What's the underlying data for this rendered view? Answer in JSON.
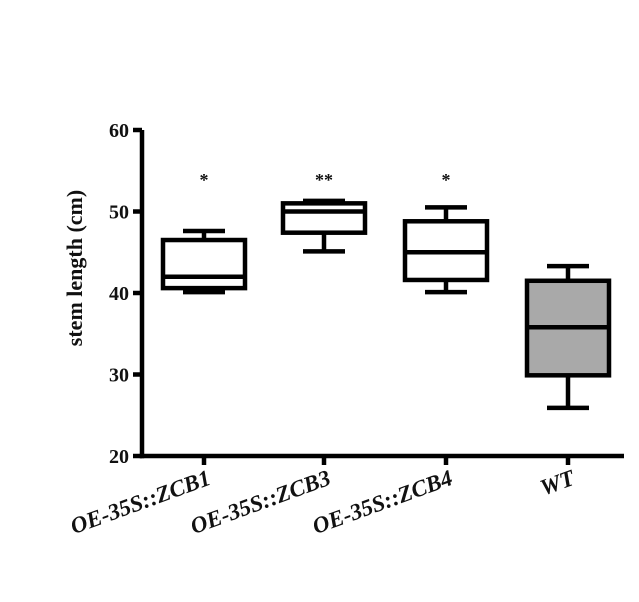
{
  "chart_data": {
    "type": "box",
    "title": "",
    "xlabel": "",
    "ylabel": "stem length (cm)",
    "ylim": [
      20,
      60
    ],
    "yticks": [
      20,
      30,
      40,
      50,
      60
    ],
    "grid": false,
    "legend": "none",
    "categories": [
      {
        "prefix": "OE-35S::",
        "italic": "ZCB1"
      },
      {
        "prefix": "OE-35S::",
        "italic": "ZCB3"
      },
      {
        "prefix": "OE-35S::",
        "italic": "ZCB4"
      },
      {
        "prefix": "",
        "italic": "WT"
      }
    ],
    "boxes": [
      {
        "min": 40.1,
        "q1": 40.6,
        "median": 42.0,
        "q3": 46.5,
        "max": 47.6,
        "fill": "#ffffff",
        "significance": "*"
      },
      {
        "min": 45.1,
        "q1": 47.4,
        "median": 50.0,
        "q3": 51.0,
        "max": 51.3,
        "fill": "#ffffff",
        "significance": "**"
      },
      {
        "min": 40.1,
        "q1": 41.6,
        "median": 45.0,
        "q3": 48.8,
        "max": 50.5,
        "fill": "#ffffff",
        "significance": "*"
      },
      {
        "min": 25.9,
        "q1": 29.9,
        "median": 35.8,
        "q3": 41.5,
        "max": 43.3,
        "fill": "#a9a9a9",
        "significance": ""
      }
    ]
  }
}
